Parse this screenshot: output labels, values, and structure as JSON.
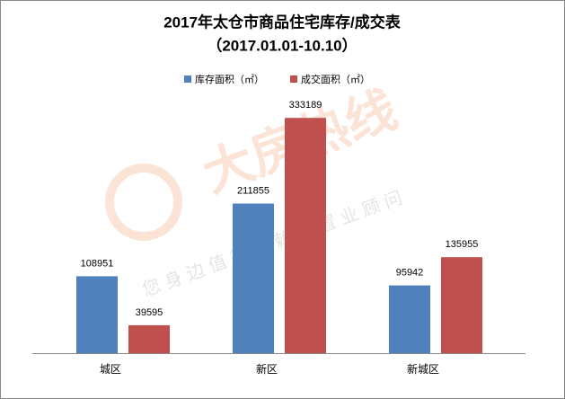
{
  "chart_data": {
    "type": "bar",
    "title": "2017年太仓市商品住宅库存/成交表",
    "subtitle": "（2017.01.01-10.10）",
    "categories": [
      "城区",
      "新区",
      "新城区"
    ],
    "series": [
      {
        "name": "库存面积（㎡）",
        "color": "#4f81bd",
        "values": [
          108951,
          211855,
          95942
        ]
      },
      {
        "name": "成交面积（㎡）",
        "color": "#c0504d",
        "values": [
          39595,
          333189,
          135955
        ]
      }
    ],
    "ylim": [
      0,
      350000
    ]
  },
  "watermark": {
    "title": "大房热线",
    "subtitle": "您身边值得信赖的置业顾问"
  }
}
